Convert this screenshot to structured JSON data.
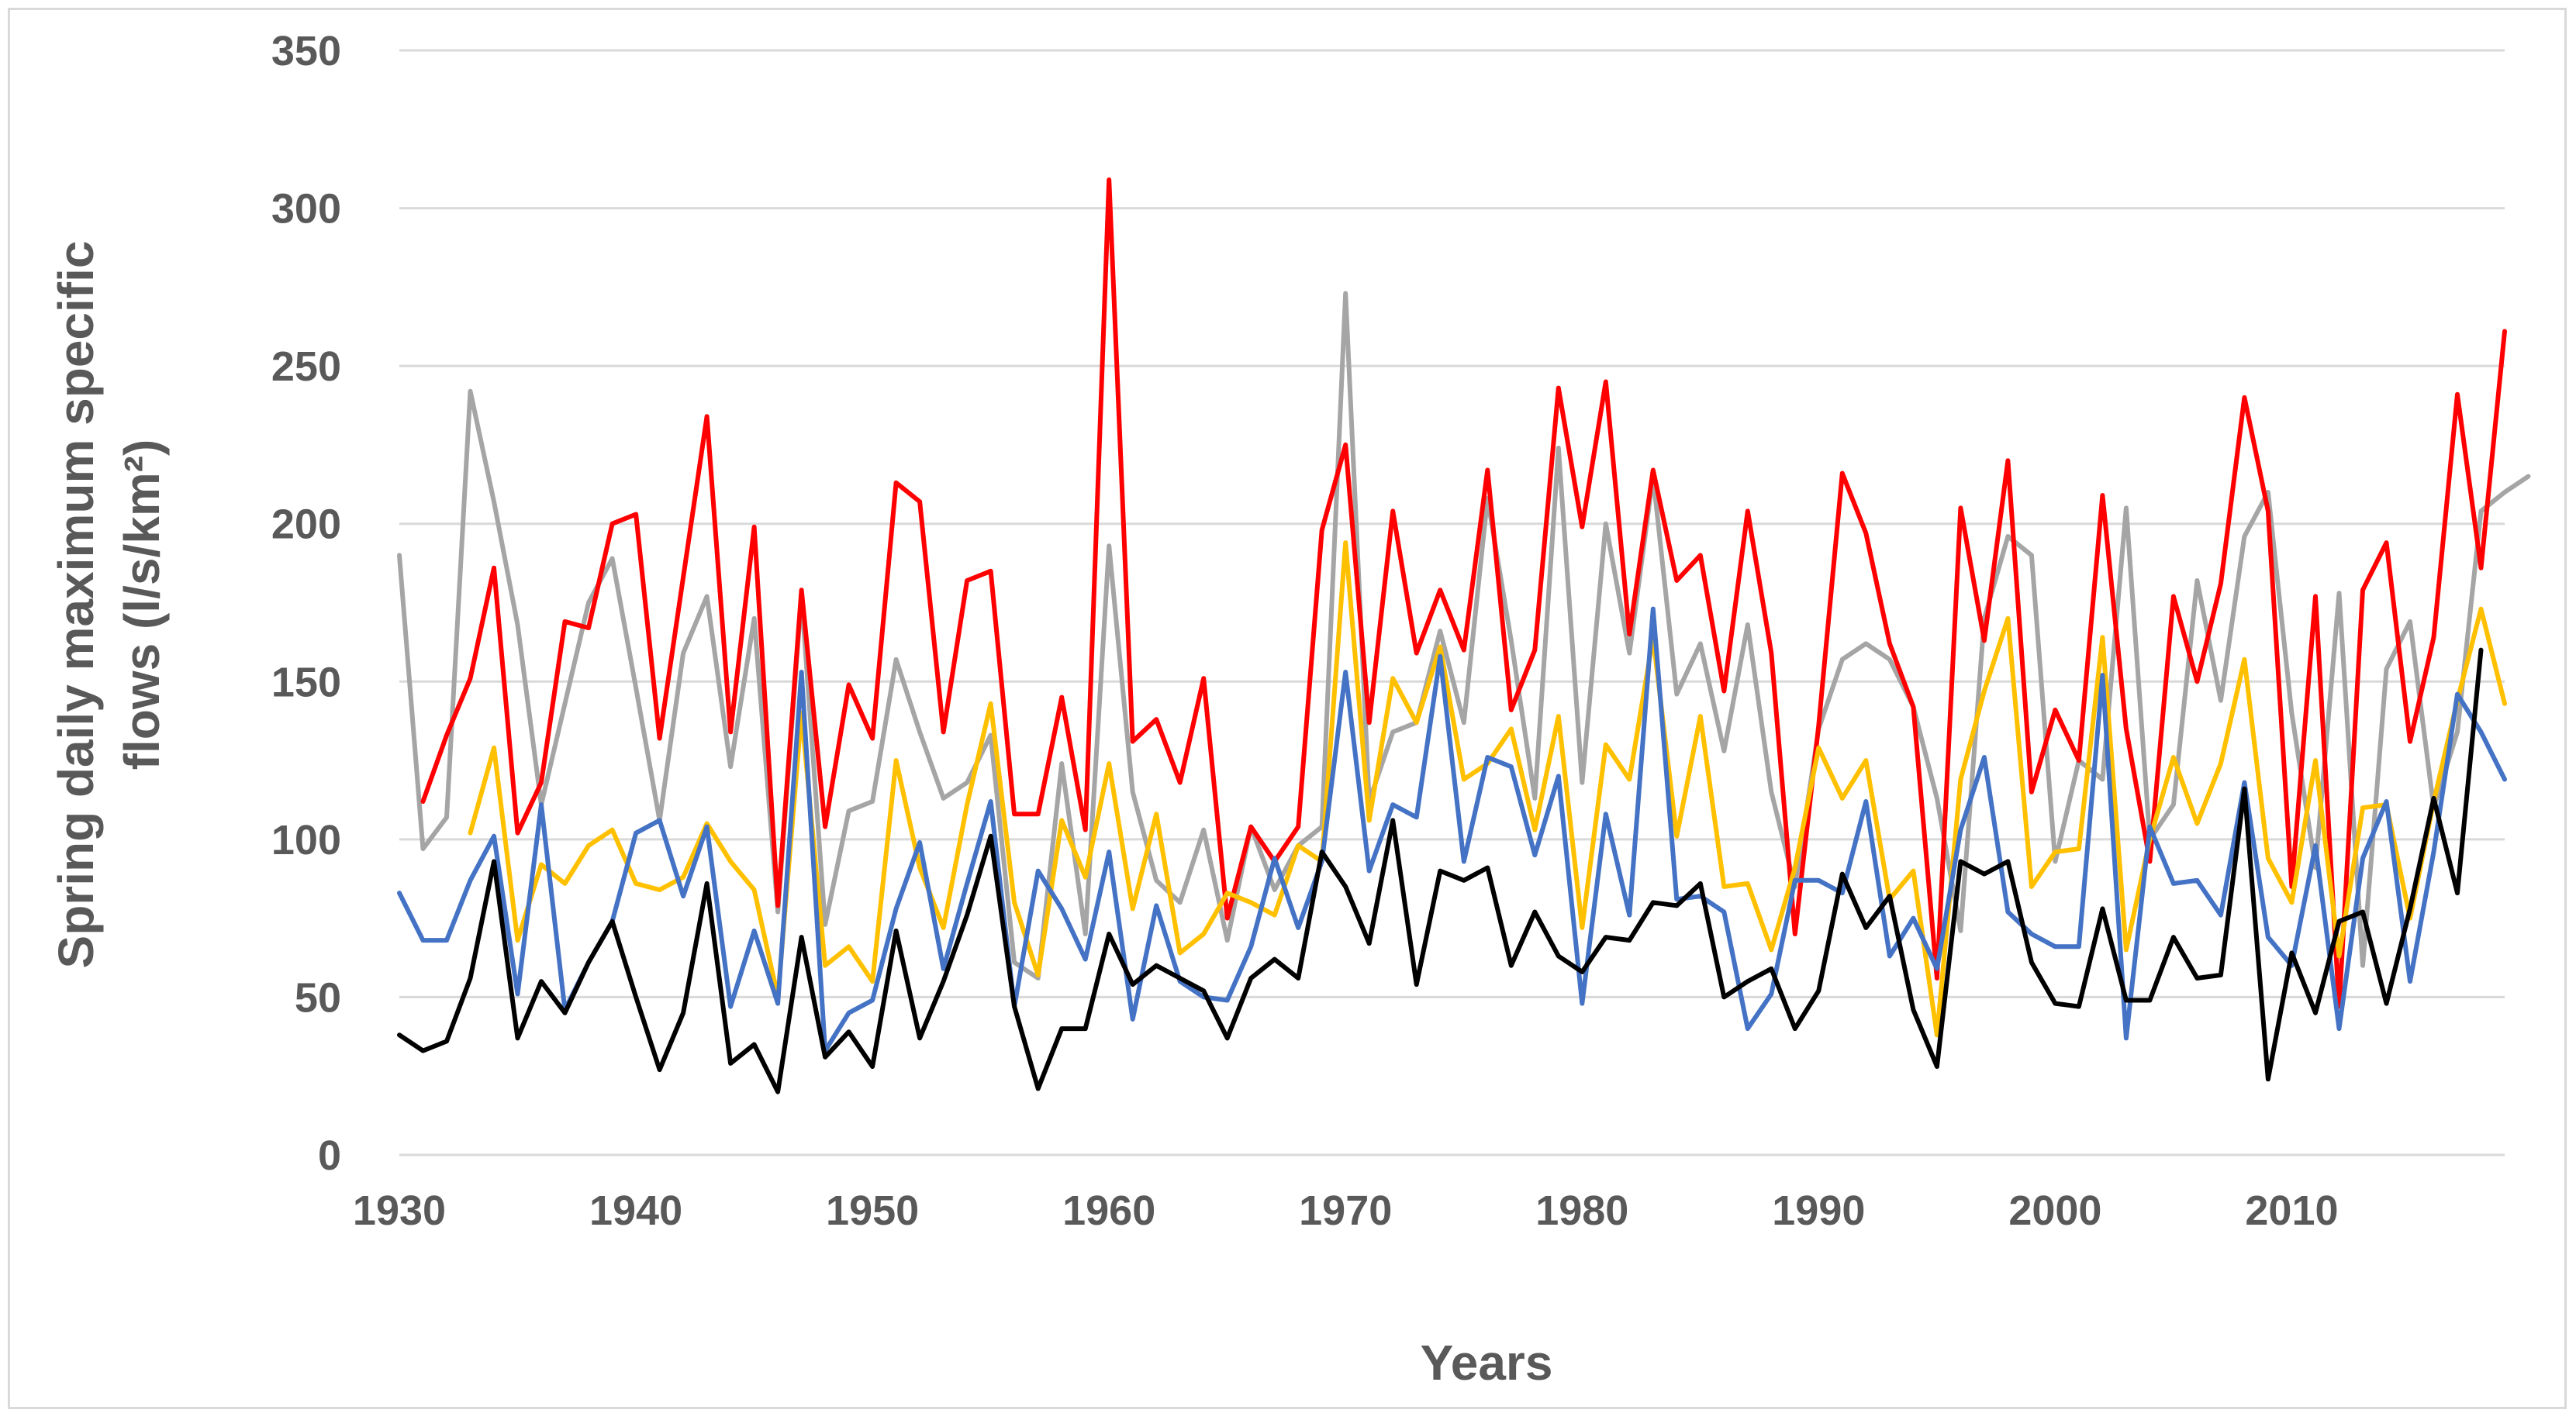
{
  "chart_data": {
    "type": "line",
    "title": "",
    "xlabel": "Years",
    "ylabel_line1": "Spring daily maximum specific",
    "ylabel_line2": "flows (l/s/km²)",
    "xlim": [
      1930,
      2019
    ],
    "ylim": [
      0,
      350
    ],
    "x_ticks": [
      1930,
      1940,
      1950,
      1960,
      1970,
      1980,
      1990,
      2000,
      2010
    ],
    "y_ticks": [
      0,
      50,
      100,
      150,
      200,
      250,
      300,
      350
    ],
    "grid": true,
    "legend": "none",
    "series": [
      {
        "name": "gray",
        "color": "#a5a5a5",
        "start_year": 1930,
        "values": [
          190,
          97,
          107,
          242,
          207,
          168,
          111,
          143,
          175,
          189,
          148,
          106,
          159,
          177,
          123,
          170,
          77,
          177,
          73,
          109,
          112,
          157,
          134,
          113,
          118,
          133,
          61,
          56,
          124,
          70,
          193,
          115,
          87,
          80,
          103,
          68,
          104,
          84,
          98,
          104,
          273,
          112,
          134,
          137,
          166,
          137,
          208,
          163,
          113,
          224,
          118,
          200,
          159,
          215,
          146,
          162,
          128,
          168,
          115,
          85,
          135,
          157,
          162,
          157,
          142,
          113,
          71,
          170,
          196,
          190,
          93,
          125,
          119,
          205,
          100,
          111,
          182,
          144,
          196,
          210,
          140,
          91,
          178,
          60,
          154,
          169,
          110,
          134,
          204,
          210,
          215
        ]
      },
      {
        "name": "red",
        "color": "#ff0000",
        "start_year": 1931,
        "values": [
          112,
          133,
          151,
          186,
          102,
          118,
          169,
          167,
          200,
          203,
          132,
          183,
          234,
          134,
          199,
          79,
          179,
          104,
          149,
          132,
          213,
          207,
          134,
          182,
          185,
          108,
          108,
          145,
          103,
          309,
          131,
          138,
          118,
          151,
          75,
          104,
          93,
          104,
          198,
          225,
          137,
          204,
          159,
          179,
          160,
          217,
          141,
          160,
          243,
          199,
          245,
          165,
          217,
          182,
          190,
          147,
          204,
          159,
          70,
          136,
          216,
          197,
          162,
          142,
          56,
          205,
          163,
          220,
          115,
          141,
          125,
          209,
          135,
          93,
          177,
          150,
          181,
          240,
          204,
          85,
          177,
          47,
          179,
          194,
          131,
          164,
          241,
          186,
          261
        ]
      },
      {
        "name": "yellow",
        "color": "#ffc000",
        "start_year": 1933,
        "values": [
          102,
          129,
          68,
          92,
          86,
          98,
          103,
          86,
          84,
          88,
          105,
          93,
          84,
          50,
          140,
          60,
          66,
          55,
          125,
          91,
          72,
          111,
          143,
          80,
          57,
          106,
          88,
          124,
          78,
          108,
          64,
          70,
          83,
          80,
          76,
          98,
          93,
          194,
          106,
          151,
          137,
          161,
          119,
          124,
          135,
          103,
          139,
          72,
          130,
          119,
          164,
          101,
          139,
          85,
          86,
          65,
          91,
          129,
          113,
          125,
          81,
          90,
          38,
          119,
          147,
          170,
          85,
          96,
          97,
          164,
          65,
          100,
          126,
          105,
          124,
          157,
          94,
          80,
          125,
          63,
          110,
          111,
          75,
          112,
          144,
          173,
          143
        ]
      },
      {
        "name": "blue",
        "color": "#4472c4",
        "start_year": 1930,
        "values": [
          83,
          68,
          68,
          87,
          101,
          51,
          111,
          46,
          61,
          74,
          102,
          106,
          82,
          104,
          47,
          71,
          48,
          153,
          33,
          45,
          49,
          78,
          99,
          59,
          86,
          112,
          47,
          90,
          78,
          62,
          96,
          43,
          79,
          55,
          50,
          49,
          66,
          94,
          72,
          93,
          153,
          90,
          111,
          107,
          158,
          93,
          126,
          123,
          95,
          120,
          48,
          108,
          76,
          173,
          81,
          82,
          77,
          40,
          51,
          87,
          87,
          83,
          112,
          63,
          75,
          59,
          103,
          126,
          77,
          70,
          66,
          66,
          152,
          37,
          104,
          86,
          87,
          76,
          118,
          69,
          60,
          98,
          40,
          94,
          112,
          55,
          96,
          146,
          134,
          119
        ]
      },
      {
        "name": "black",
        "color": "#000000",
        "start_year": 1930,
        "values": [
          38,
          33,
          36,
          56,
          93,
          37,
          55,
          45,
          61,
          74,
          50,
          27,
          45,
          86,
          29,
          35,
          20,
          69,
          31,
          39,
          28,
          71,
          37,
          55,
          76,
          101,
          47,
          21,
          40,
          40,
          70,
          54,
          60,
          56,
          52,
          37,
          56,
          62,
          56,
          96,
          85,
          67,
          106,
          54,
          90,
          87,
          91,
          60,
          77,
          63,
          58,
          69,
          68,
          80,
          79,
          86,
          50,
          55,
          59,
          40,
          52,
          89,
          72,
          82,
          46,
          28,
          93,
          89,
          93,
          61,
          48,
          47,
          78,
          49,
          49,
          69,
          56,
          57,
          116,
          24,
          64,
          45,
          74,
          77,
          48,
          78,
          113,
          83,
          160
        ]
      }
    ]
  }
}
